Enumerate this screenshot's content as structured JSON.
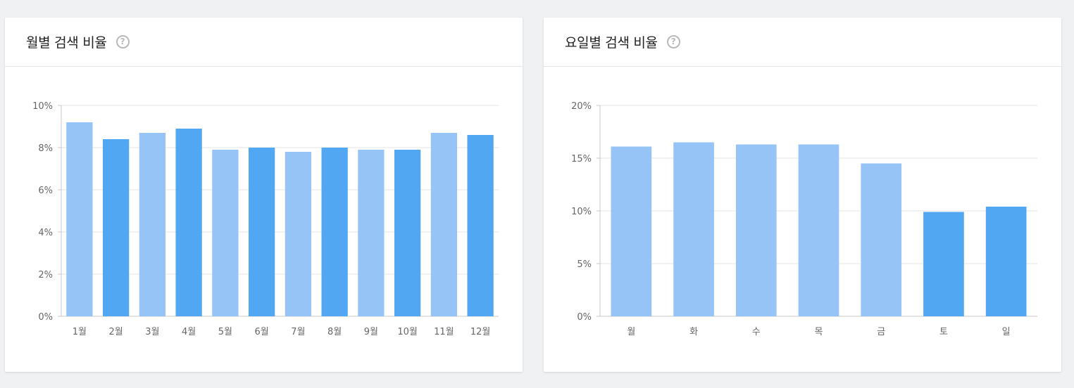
{
  "chart_data": [
    {
      "type": "bar",
      "title": "월별 검색 비율",
      "help_icon": "help-icon",
      "categories": [
        "1월",
        "2월",
        "3월",
        "4월",
        "5월",
        "6월",
        "7월",
        "8월",
        "9월",
        "10월",
        "11월",
        "12월"
      ],
      "values": [
        9.2,
        8.4,
        8.7,
        8.9,
        7.9,
        8.0,
        7.8,
        8.0,
        7.9,
        7.9,
        8.7,
        8.6
      ],
      "ylim": [
        0,
        10
      ],
      "yticks": [
        0,
        2,
        4,
        6,
        8,
        10
      ],
      "ytick_labels": [
        "0%",
        "2%",
        "4%",
        "6%",
        "8%",
        "10%"
      ],
      "bar_colors": [
        "#97c4f7",
        "#52a7f2",
        "#97c4f7",
        "#52a7f2",
        "#97c4f7",
        "#52a7f2",
        "#97c4f7",
        "#52a7f2",
        "#97c4f7",
        "#52a7f2",
        "#97c4f7",
        "#52a7f2"
      ],
      "grid": true,
      "legend": "none"
    },
    {
      "type": "bar",
      "title": "요일별 검색 비율",
      "help_icon": "help-icon",
      "categories": [
        "월",
        "화",
        "수",
        "목",
        "금",
        "토",
        "일"
      ],
      "values": [
        16.1,
        16.5,
        16.3,
        16.3,
        14.5,
        9.9,
        10.4
      ],
      "ylim": [
        0,
        20
      ],
      "yticks": [
        0,
        5,
        10,
        15,
        20
      ],
      "ytick_labels": [
        "0%",
        "5%",
        "10%",
        "15%",
        "20%"
      ],
      "bar_colors": [
        "#97c4f7",
        "#97c4f7",
        "#97c4f7",
        "#97c4f7",
        "#97c4f7",
        "#52a7f2",
        "#52a7f2"
      ],
      "grid": true,
      "legend": "none"
    }
  ]
}
